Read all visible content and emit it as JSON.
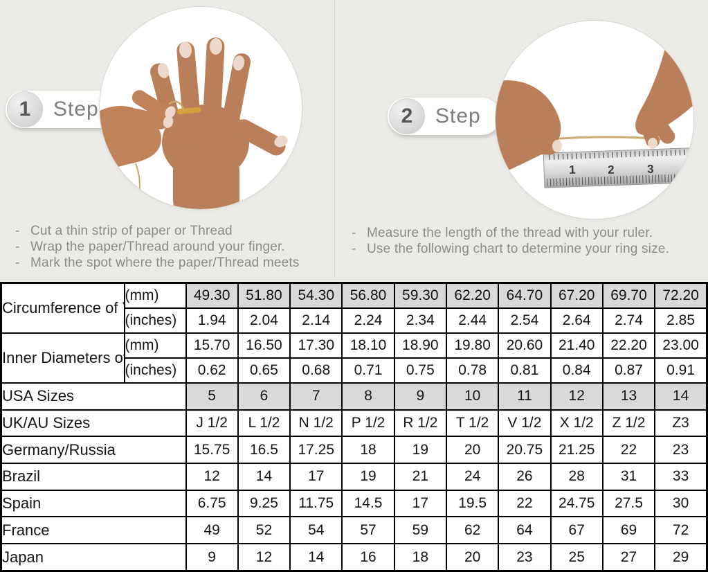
{
  "colors": {
    "background": "#eceae6",
    "table_shaded_cell": "#d9d9d9",
    "table_border": "#000000",
    "muted_text": "#8b8b88",
    "badge_text": "#7d7d7b",
    "thread_gold": "#c9a96e"
  },
  "icons": {
    "step1_photo": "hand-with-ring-and-thread-photo",
    "step2_photo": "hands-measuring-thread-with-ruler-photo"
  },
  "steps": [
    {
      "number": "1",
      "label": "Step",
      "bullet": "-",
      "instructions": [
        "Cut a thin strip of paper or Thread",
        "Wrap the paper/Thread around your finger.",
        "Mark the spot where the paper/Thread meets"
      ]
    },
    {
      "number": "2",
      "label": "Step",
      "bullet": "-",
      "instructions": [
        "Measure the length of the thread with your ruler.",
        "Use the following chart to determine your ring size."
      ],
      "ruler_numbers": [
        "1",
        "2",
        "3"
      ]
    }
  ],
  "table": {
    "row_groups": [
      {
        "label": "Circumference of Your Finger",
        "rows": [
          {
            "unit": "(mm)",
            "shaded": true,
            "values": [
              "49.30",
              "51.80",
              "54.30",
              "56.80",
              "59.30",
              "62.20",
              "64.70",
              "67.20",
              "69.70",
              "72.20"
            ]
          },
          {
            "unit": "(inches)",
            "shaded": false,
            "values": [
              "1.94",
              "2.04",
              "2.14",
              "2.24",
              "2.34",
              "2.44",
              "2.54",
              "2.64",
              "2.74",
              "2.85"
            ]
          }
        ]
      },
      {
        "label": "Inner Diameters of Rings",
        "rows": [
          {
            "unit": "(mm)",
            "shaded": false,
            "values": [
              "15.70",
              "16.50",
              "17.30",
              "18.10",
              "18.90",
              "19.80",
              "20.60",
              "21.40",
              "22.20",
              "23.00"
            ]
          },
          {
            "unit": "(inches)",
            "shaded": false,
            "values": [
              "0.62",
              "0.65",
              "0.68",
              "0.71",
              "0.75",
              "0.78",
              "0.81",
              "0.84",
              "0.87",
              "0.91"
            ]
          }
        ]
      }
    ],
    "size_rows": [
      {
        "label": "USA Sizes",
        "shaded": true,
        "values": [
          "5",
          "6",
          "7",
          "8",
          "9",
          "10",
          "11",
          "12",
          "13",
          "14"
        ]
      },
      {
        "label": "UK/AU Sizes",
        "shaded": false,
        "values": [
          "J 1/2",
          "L 1/2",
          "N 1/2",
          "P 1/2",
          "R 1/2",
          "T 1/2",
          "V 1/2",
          "X 1/2",
          "Z 1/2",
          "Z3"
        ]
      },
      {
        "label": "Germany/Russia",
        "shaded": false,
        "values": [
          "15.75",
          "16.5",
          "17.25",
          "18",
          "19",
          "20",
          "20.75",
          "21.25",
          "22",
          "23"
        ]
      },
      {
        "label": "Brazil",
        "shaded": false,
        "values": [
          "12",
          "14",
          "17",
          "19",
          "21",
          "24",
          "26",
          "28",
          "31",
          "33"
        ]
      },
      {
        "label": "Spain",
        "shaded": false,
        "values": [
          "6.75",
          "9.25",
          "11.75",
          "14.5",
          "17",
          "19.5",
          "22",
          "24.75",
          "27.5",
          "30"
        ]
      },
      {
        "label": "France",
        "shaded": false,
        "values": [
          "49",
          "52",
          "54",
          "57",
          "59",
          "62",
          "64",
          "67",
          "69",
          "72"
        ]
      },
      {
        "label": "Japan",
        "shaded": false,
        "values": [
          "9",
          "12",
          "14",
          "16",
          "18",
          "20",
          "23",
          "25",
          "27",
          "29"
        ]
      }
    ]
  }
}
